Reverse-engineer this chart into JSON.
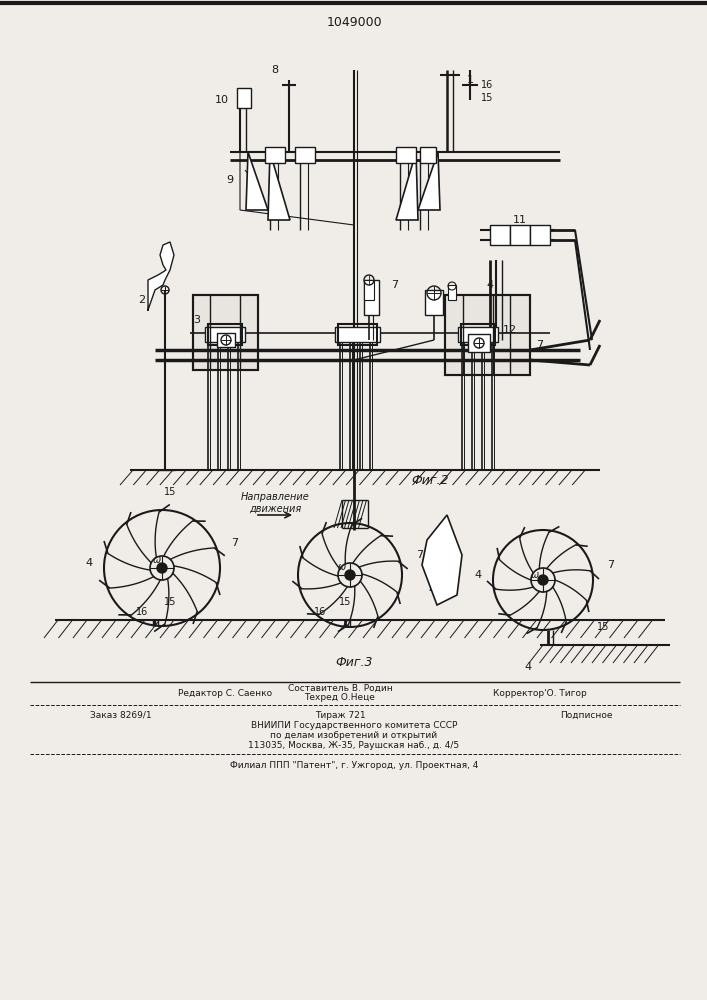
{
  "patent_number": "1049000",
  "fig2_label": "Фиг.2",
  "fig3_label": "Фиг.3",
  "direction_label": "Направление\nдвижения",
  "bg_color": "#f0ede8",
  "line_color": "#1a1a1a",
  "footer": {
    "col1_line1": "Редактор С. Саенко",
    "col2_line1": "Составитель В. Родин",
    "col2_line2": "Техред О.Неце",
    "col3_line1": "Корректор'О. Тигор",
    "row2_left": "Заказ 8269/1",
    "row2_mid": "Тираж 721",
    "row2_right": "Подписное",
    "row3": "ВНИИПИ Государственного комитета СССР",
    "row4": "по делам изобретений и открытий",
    "row5": "113035, Москва, Ж-35, Раушская наб., д. 4/5",
    "row6": "Филиал ППП \"Патент\", г. Ужгород, ул. Проектная, 4"
  }
}
